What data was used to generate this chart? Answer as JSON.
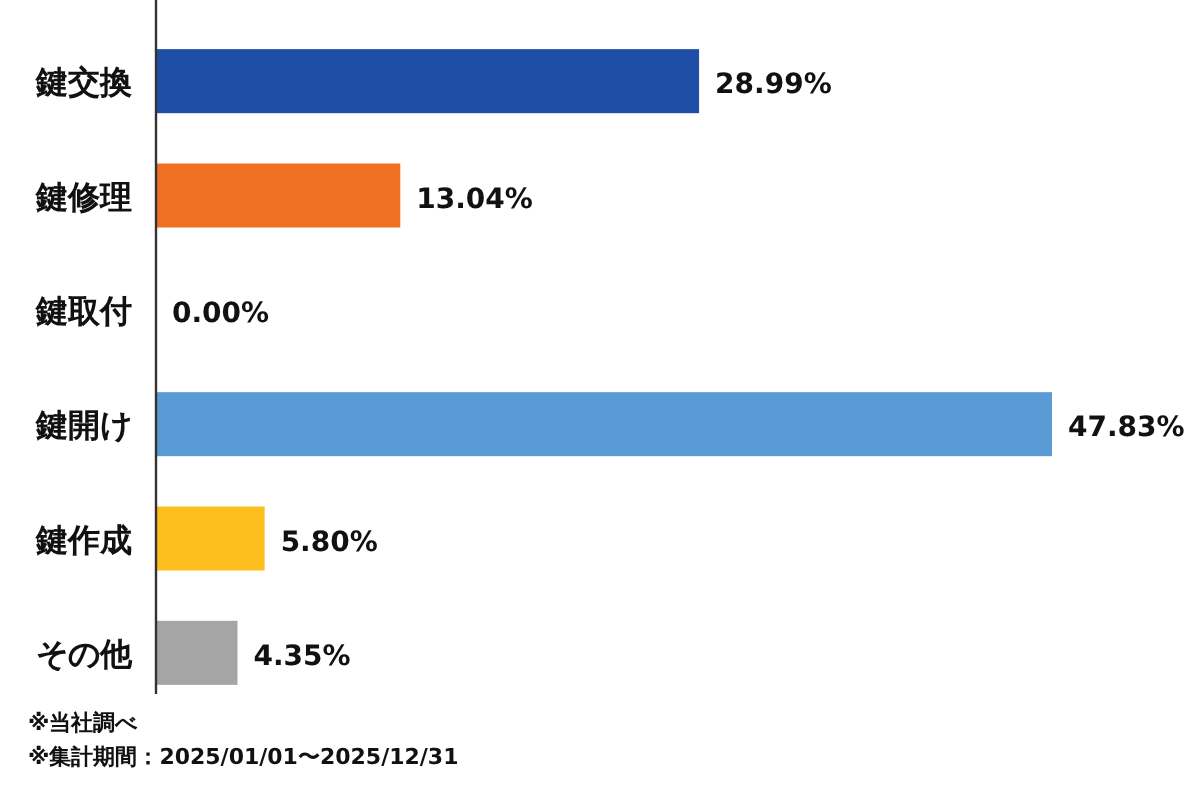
{
  "chart_data": {
    "type": "bar",
    "orientation": "horizontal",
    "categories": [
      "鍵交換",
      "鍵修理",
      "鍵取付",
      "鍵開け",
      "鍵作成",
      "その他"
    ],
    "values": [
      28.99,
      13.04,
      0.0,
      47.83,
      5.8,
      4.35
    ],
    "value_labels": [
      "28.99%",
      "13.04%",
      "0.00%",
      "47.83%",
      "5.80%",
      "4.35%"
    ],
    "colors": [
      "#1f4ea6",
      "#ef7023",
      "#7f7f7f",
      "#5b9bd5",
      "#fdbf1e",
      "#a5a5a5"
    ],
    "annotations": [
      "※当社調べ",
      "※集計期間：2025/01/01〜2025/12/31"
    ]
  }
}
